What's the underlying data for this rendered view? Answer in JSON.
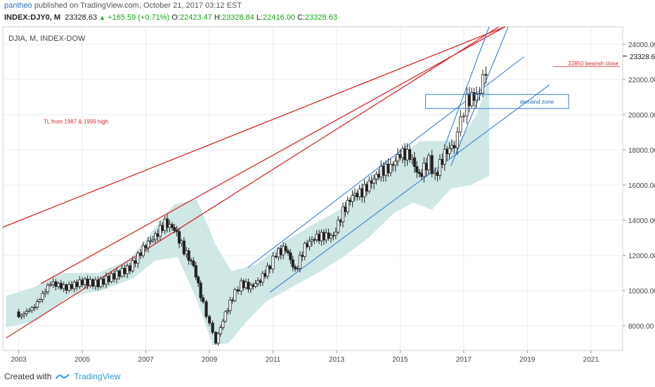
{
  "header": {
    "author": "pantheo",
    "published_text": "published on TradingView.com, October 21, 2017 03:12 EST",
    "symbol": "INDEX:DJY0, M",
    "last": "23328.63",
    "change": "+165.59 (+0.71%)",
    "o_label": "O:",
    "o_value": "22423.47",
    "h_label": "H:",
    "h_value": "23328.84",
    "l_label": "L:",
    "l_value": "22416.00",
    "c_label": "C:",
    "c_value": "23328.63"
  },
  "footer": {
    "created_with": "Created with",
    "brand": "TradingView"
  },
  "colors": {
    "up": "#222222",
    "down": "#222222",
    "blue_line": "#3b7fd6",
    "red_line": "#d42a2a",
    "band": "#cfe8e6",
    "grid": "#ececec"
  },
  "chart_data": {
    "type": "candlestick",
    "title": "DJIA, M, INDEX-DOW",
    "y_ticks": [
      "8000.00",
      "10000.00",
      "12000.00",
      "14000.00",
      "16000.00",
      "18000.00",
      "20000.00",
      "22000.00",
      "24000.00"
    ],
    "x_ticks": [
      "2003",
      "2005",
      "2007",
      "2009",
      "2011",
      "2013",
      "2015",
      "2017",
      "2019",
      "2021"
    ],
    "ylim": [
      6600,
      25000
    ],
    "xlim": [
      2002.5,
      2022.0
    ],
    "price_label": "23328.63",
    "annotations": {
      "resistance_label": "22850 bearish close",
      "resistance_level": 22850,
      "zone_label": "demand zone",
      "zone_range": [
        20350,
        21150
      ],
      "trendline_label": "TL from 1987 & 1999 high"
    },
    "closes": [
      [
        2003.0,
        8500
      ],
      [
        2003.5,
        9100
      ],
      [
        2004.0,
        10450
      ],
      [
        2004.5,
        10150
      ],
      [
        2005.0,
        10500
      ],
      [
        2005.5,
        10400
      ],
      [
        2006.0,
        10850
      ],
      [
        2006.5,
        11300
      ],
      [
        2007.0,
        12600
      ],
      [
        2007.3,
        13100
      ],
      [
        2007.6,
        13850
      ],
      [
        2007.9,
        13500
      ],
      [
        2008.2,
        12300
      ],
      [
        2008.5,
        11400
      ],
      [
        2008.8,
        9200
      ],
      [
        2009.0,
        8100
      ],
      [
        2009.2,
        7100
      ],
      [
        2009.5,
        8700
      ],
      [
        2009.8,
        9900
      ],
      [
        2010.0,
        10400
      ],
      [
        2010.3,
        10200
      ],
      [
        2010.6,
        10600
      ],
      [
        2010.9,
        11400
      ],
      [
        2011.1,
        12100
      ],
      [
        2011.4,
        12400
      ],
      [
        2011.7,
        11100
      ],
      [
        2012.0,
        12500
      ],
      [
        2012.3,
        13000
      ],
      [
        2012.6,
        13100
      ],
      [
        2012.9,
        13100
      ],
      [
        2013.2,
        14500
      ],
      [
        2013.5,
        15400
      ],
      [
        2013.8,
        15600
      ],
      [
        2014.1,
        16200
      ],
      [
        2014.4,
        16800
      ],
      [
        2014.7,
        17000
      ],
      [
        2015.0,
        17800
      ],
      [
        2015.3,
        17700
      ],
      [
        2015.6,
        16500
      ],
      [
        2015.9,
        17400
      ],
      [
        2016.1,
        16500
      ],
      [
        2016.4,
        17800
      ],
      [
        2016.7,
        18300
      ],
      [
        2016.9,
        19700
      ],
      [
        2017.1,
        20800
      ],
      [
        2017.4,
        21100
      ],
      [
        2017.6,
        21900
      ],
      [
        2017.8,
        23330
      ]
    ]
  }
}
